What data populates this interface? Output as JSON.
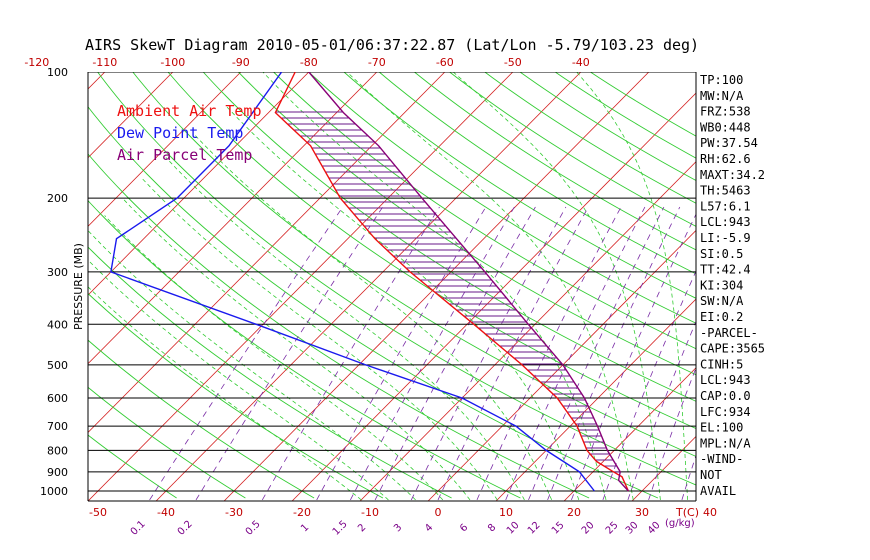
{
  "chart_data": {
    "type": "skew-t",
    "title": "AIRS SkewT Diagram 2010-05-01/06:37:22.87 (Lat/Lon -5.79/103.23 deg)",
    "ylabel": "PRESSURE (MB)",
    "xlabel_temp": "T(C)",
    "xlabel_mixing": "(g/kg)",
    "pressure_levels": [
      100,
      200,
      300,
      400,
      500,
      600,
      700,
      800,
      900,
      1000
    ],
    "pressure_range": [
      100,
      1050
    ],
    "top_temp_ticks": [
      -120,
      -110,
      -100,
      -90,
      -80,
      -70,
      -60,
      -50,
      -40
    ],
    "bottom_temp_ticks": [
      -50,
      -40,
      -30,
      -20,
      -10,
      0,
      10,
      20,
      30,
      40
    ],
    "mixing_ratio_ticks": [
      "0.1",
      "0.2",
      "0.5",
      "1",
      "1.5",
      "2",
      "3",
      "4",
      "6",
      "8",
      "10",
      "12",
      "15",
      "20",
      "25",
      "30",
      "40"
    ],
    "legend": [
      {
        "label": "Ambient Air Temp",
        "color": "#ee1111"
      },
      {
        "label": "Dew Point Temp",
        "color": "#1a1aee"
      },
      {
        "label": "Air Parcel Temp",
        "color": "#880077"
      }
    ],
    "series": [
      {
        "name": "Ambient Air Temp",
        "color": "#ee1111",
        "points": [
          [
            100,
            -82
          ],
          [
            125,
            -79
          ],
          [
            150,
            -69
          ],
          [
            200,
            -57
          ],
          [
            250,
            -46
          ],
          [
            300,
            -36
          ],
          [
            400,
            -19
          ],
          [
            500,
            -6
          ],
          [
            600,
            4
          ],
          [
            700,
            11
          ],
          [
            800,
            16
          ],
          [
            850,
            19
          ],
          [
            900,
            23
          ],
          [
            925,
            25
          ],
          [
            1000,
            28
          ]
        ]
      },
      {
        "name": "Dew Point Temp",
        "color": "#1a1aee",
        "points": [
          [
            100,
            -84
          ],
          [
            150,
            -81
          ],
          [
            200,
            -81
          ],
          [
            250,
            -84
          ],
          [
            300,
            -80
          ],
          [
            400,
            -51
          ],
          [
            500,
            -29
          ],
          [
            600,
            -10
          ],
          [
            700,
            2
          ],
          [
            800,
            10
          ],
          [
            900,
            18
          ],
          [
            1000,
            23
          ]
        ]
      },
      {
        "name": "Air Parcel Temp",
        "color": "#880077",
        "points": [
          [
            100,
            -80
          ],
          [
            125,
            -69
          ],
          [
            150,
            -59
          ],
          [
            200,
            -45
          ],
          [
            250,
            -34
          ],
          [
            300,
            -25
          ],
          [
            400,
            -11
          ],
          [
            500,
            0
          ],
          [
            600,
            8
          ],
          [
            700,
            14
          ],
          [
            800,
            19
          ],
          [
            900,
            24
          ],
          [
            943,
            25
          ],
          [
            1000,
            28
          ]
        ]
      }
    ]
  },
  "indices": [
    {
      "id": "tp",
      "label": "TP:100"
    },
    {
      "id": "mw",
      "label": "MW:N/A"
    },
    {
      "id": "frz",
      "label": "FRZ:538"
    },
    {
      "id": "wb0",
      "label": "WB0:448"
    },
    {
      "id": "pw",
      "label": "PW:37.54"
    },
    {
      "id": "rh",
      "label": "RH:62.6"
    },
    {
      "id": "maxt",
      "label": "MAXT:34.2"
    },
    {
      "id": "th",
      "label": "TH:5463"
    },
    {
      "id": "l57",
      "label": "L57:6.1"
    },
    {
      "id": "lcl",
      "label": "LCL:943"
    },
    {
      "id": "li",
      "label": "LI:-5.9"
    },
    {
      "id": "si",
      "label": "SI:0.5"
    },
    {
      "id": "tt",
      "label": "TT:42.4"
    },
    {
      "id": "ki",
      "label": "KI:304"
    },
    {
      "id": "sw",
      "label": "SW:N/A"
    },
    {
      "id": "ei",
      "label": "EI:0.2"
    },
    {
      "id": "parcel-header",
      "label": "-PARCEL-"
    },
    {
      "id": "cape",
      "label": "CAPE:3565"
    },
    {
      "id": "cinh",
      "label": "CINH:5"
    },
    {
      "id": "lcl2",
      "label": "LCL:943"
    },
    {
      "id": "cap",
      "label": "CAP:0.0"
    },
    {
      "id": "lfc",
      "label": "LFC:934"
    },
    {
      "id": "el",
      "label": "EL:100"
    },
    {
      "id": "mpl",
      "label": "MPL:N/A"
    },
    {
      "id": "wind-header",
      "label": "-WIND-"
    },
    {
      "id": "wind-not",
      "label": "NOT"
    },
    {
      "id": "wind-avail",
      "label": "AVAIL"
    }
  ]
}
